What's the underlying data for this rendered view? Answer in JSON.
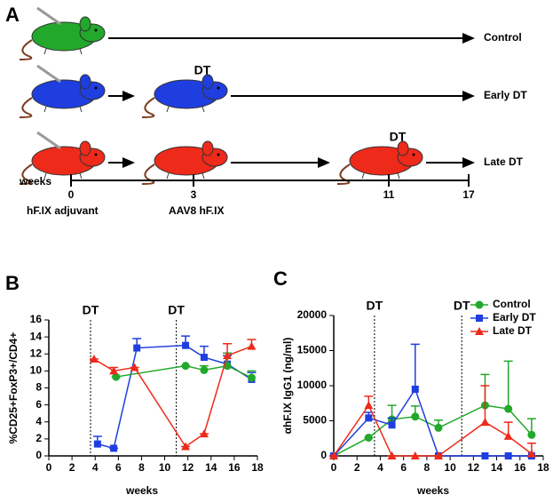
{
  "panel_a": {
    "label": "A",
    "rows": [
      {
        "label": "Control",
        "color": "#22a82a",
        "mice_weeks": [
          0
        ]
      },
      {
        "label": "Early DT",
        "color": "#1f3ee0",
        "mice_weeks": [
          0,
          3
        ]
      },
      {
        "label": "Late DT",
        "color": "#ee2a1a",
        "mice_weeks": [
          0,
          3,
          11
        ]
      }
    ],
    "treatments": [
      {
        "label": "DT",
        "row": 1,
        "week": 3
      },
      {
        "label": "DT",
        "row": 2,
        "week": 11
      }
    ],
    "timeline": {
      "label": "weeks",
      "ticks": [
        0,
        3,
        11,
        17
      ],
      "events": [
        {
          "week": 0,
          "label": "hF.IX adjuvant"
        },
        {
          "week": 3,
          "label": "AAV8 hF.IX"
        }
      ]
    }
  },
  "chart_data": [
    {
      "type": "line",
      "panel_label": "B",
      "y_label": "%CD25+FoxP3+/CD4+",
      "x_label": "weeks",
      "xlim": [
        0,
        18
      ],
      "xticks": [
        0,
        2,
        4,
        6,
        8,
        10,
        12,
        14,
        16,
        18
      ],
      "ylim": [
        0,
        16
      ],
      "yticks": [
        0,
        2,
        4,
        6,
        8,
        10,
        12,
        14,
        16
      ],
      "annotations": [
        {
          "x": 3.6,
          "label": "DT",
          "color": "#1f3ee0"
        },
        {
          "x": 11,
          "label": "DT",
          "color": "#ee2a1a"
        }
      ],
      "series": [
        {
          "color": "#1f3ee0",
          "marker": "square",
          "x": [
            4.2,
            5.6,
            7.6,
            11.8,
            13.4,
            15.4,
            17.5
          ],
          "values": [
            1.4,
            0.9,
            12.7,
            13.0,
            11.6,
            10.8,
            9.0
          ],
          "errors": [
            0.9,
            0,
            1.1,
            1.1,
            1.3,
            1.0,
            0.8
          ]
        },
        {
          "color": "#22a82a",
          "marker": "circle",
          "x": [
            5.8,
            11.8,
            13.4,
            15.4,
            17.5
          ],
          "values": [
            9.3,
            10.6,
            10.1,
            10.6,
            9.2
          ],
          "errors": [
            0,
            0,
            0.5,
            1.5,
            0.8
          ]
        },
        {
          "color": "#ee2a1a",
          "marker": "triangle",
          "x": [
            3.9,
            5.6,
            7.4,
            11.8,
            13.4,
            15.4,
            17.5
          ],
          "values": [
            11.4,
            10.0,
            10.4,
            1.1,
            2.6,
            11.8,
            12.9
          ],
          "errors": [
            0,
            0.4,
            0,
            0,
            0,
            1.4,
            0.8
          ]
        }
      ]
    },
    {
      "type": "line",
      "panel_label": "C",
      "y_label": "αhF.IX IgG1 (ng/ml)",
      "x_label": "weeks",
      "xlim": [
        0,
        18
      ],
      "xticks": [
        0,
        2,
        4,
        6,
        8,
        10,
        12,
        14,
        16,
        18
      ],
      "ylim": [
        0,
        20000
      ],
      "yticks": [
        0,
        5000,
        10000,
        15000,
        20000
      ],
      "legend": "top-right",
      "annotations": [
        {
          "x": 3.5,
          "label": "DT",
          "color": "#1f3ee0"
        },
        {
          "x": 11,
          "label": "DT",
          "color": "#ee2a1a"
        }
      ],
      "series": [
        {
          "name": "Control",
          "color": "#22a82a",
          "marker": "circle",
          "x": [
            0,
            3,
            5,
            7,
            9,
            13,
            15,
            17
          ],
          "values": [
            0,
            2600,
            5200,
            5600,
            4000,
            7200,
            6700,
            3000
          ],
          "errors": [
            0,
            0,
            2000,
            1500,
            1100,
            4400,
            6800,
            2300
          ]
        },
        {
          "name": "Early DT",
          "color": "#1f3ee0",
          "marker": "square",
          "x": [
            0,
            3,
            5,
            7,
            9,
            13,
            15,
            17
          ],
          "values": [
            0,
            5400,
            4400,
            9500,
            0,
            0,
            0,
            0
          ],
          "errors": [
            0,
            800,
            1000,
            6400,
            0,
            0,
            0,
            0
          ]
        },
        {
          "name": "Late DT",
          "color": "#ee2a1a",
          "marker": "triangle",
          "x": [
            0,
            3,
            5,
            7,
            9,
            13,
            15,
            17
          ],
          "values": [
            0,
            7200,
            0,
            0,
            0,
            4800,
            2800,
            300
          ],
          "errors": [
            0,
            1300,
            0,
            0,
            0,
            5200,
            2000,
            1500
          ]
        }
      ]
    }
  ]
}
